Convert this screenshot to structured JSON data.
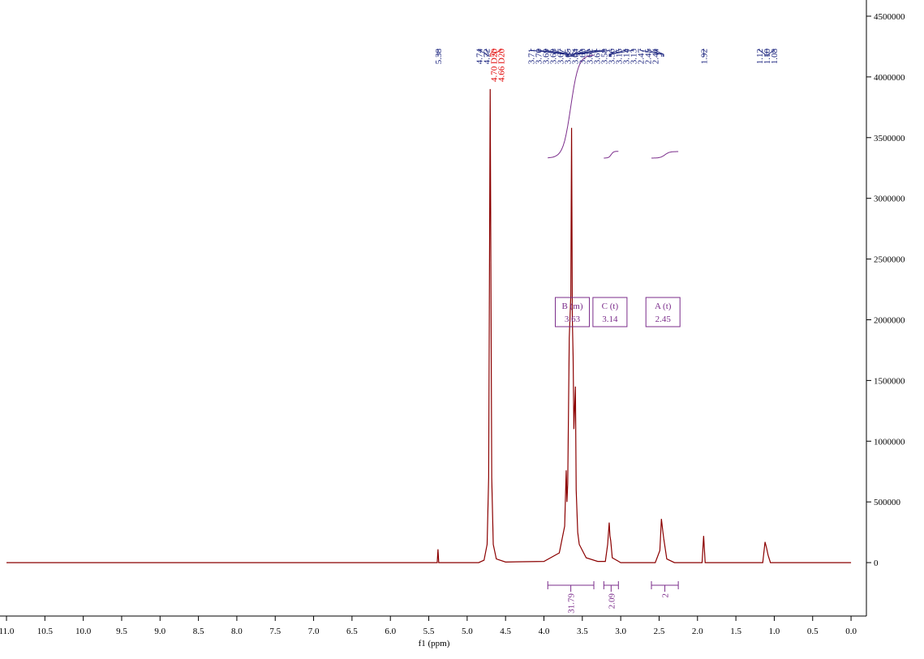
{
  "chart_data": {
    "type": "line",
    "x_label": "f1 (ppm)",
    "color": "#8b0000",
    "x": [
      11.0,
      5.45,
      5.39,
      5.38,
      5.37,
      4.85,
      4.78,
      4.74,
      4.72,
      4.7,
      4.68,
      4.66,
      4.62,
      4.5,
      4.0,
      3.8,
      3.73,
      3.71,
      3.7,
      3.69,
      3.67,
      3.65,
      3.64,
      3.63,
      3.62,
      3.61,
      3.59,
      3.58,
      3.56,
      3.54,
      3.45,
      3.3,
      3.2,
      3.17,
      3.15,
      3.14,
      3.13,
      3.11,
      3.0,
      2.55,
      2.49,
      2.47,
      2.45,
      2.44,
      2.4,
      2.3,
      1.94,
      1.92,
      1.9,
      1.15,
      1.12,
      1.1,
      1.08,
      1.05,
      0
    ],
    "values": [
      0,
      0,
      0,
      110000,
      0,
      0,
      20000,
      150000,
      700000,
      3900000,
      700000,
      150000,
      30000,
      5000,
      10000,
      80000,
      300000,
      760000,
      500000,
      650000,
      1850000,
      2200000,
      3580000,
      2000000,
      1700000,
      1100000,
      1450000,
      600000,
      250000,
      150000,
      40000,
      10000,
      10000,
      150000,
      330000,
      220000,
      180000,
      40000,
      0,
      0,
      100000,
      360000,
      250000,
      200000,
      30000,
      0,
      0,
      220000,
      0,
      0,
      170000,
      120000,
      60000,
      0,
      0
    ],
    "xlim": [
      11.0,
      -0.2
    ],
    "xticks": [
      {
        "value": 11.0,
        "label": "11.0"
      },
      10.5,
      {
        "value": 10.0,
        "label": "10.0"
      },
      9.5,
      {
        "value": 9.0,
        "label": "9.0"
      },
      8.5,
      {
        "value": 8.0,
        "label": "8.0"
      },
      7.5,
      {
        "value": 7.0,
        "label": "7.0"
      },
      6.5,
      {
        "value": 6.0,
        "label": "6.0"
      },
      5.5,
      {
        "value": 5.0,
        "label": "5.0"
      },
      4.5,
      {
        "value": 4.0,
        "label": "4.0"
      },
      3.5,
      {
        "value": 3.0,
        "label": "3.0"
      },
      2.5,
      {
        "value": 2.0,
        "label": "2.0"
      },
      1.5,
      {
        "value": 1.0,
        "label": "1.0"
      },
      0.5,
      {
        "value": 0,
        "label": "0.0"
      }
    ],
    "ylim": [
      -440000,
      4600000
    ],
    "yticks": [
      0,
      500000,
      1000000,
      1500000,
      2000000,
      2500000,
      3000000,
      3500000,
      4000000,
      4500000
    ],
    "peak_labels": [
      {
        "text": "5.38"
      },
      {
        "text": "4.74"
      },
      {
        "text": "4.72"
      },
      {
        "text": "4.70 D20",
        "solvent": true
      },
      {
        "text": "4.66 D20",
        "solvent": true
      },
      {
        "text": "3.71"
      },
      {
        "text": "3.70"
      },
      {
        "text": "3.69"
      },
      {
        "text": "3.68"
      },
      {
        "text": "3.67"
      },
      {
        "text": "3.65"
      },
      {
        "text": "3.64"
      },
      {
        "text": "3.63"
      },
      {
        "text": "3.62"
      },
      {
        "text": "3.61"
      },
      {
        "text": "3.58"
      },
      {
        "text": "3.56"
      },
      {
        "text": "3.15"
      },
      {
        "text": "3.14"
      },
      {
        "text": "3.13"
      },
      {
        "text": "2.47"
      },
      {
        "text": "2.45"
      },
      {
        "text": "2.44"
      },
      {
        "text": "1.92"
      },
      {
        "text": "1.12"
      },
      {
        "text": "1.10"
      },
      {
        "text": "1.08"
      }
    ],
    "multiplets": [
      {
        "label": "B (m)",
        "shift": "3.63"
      },
      {
        "label": "C (t)",
        "shift": "3.14"
      },
      {
        "label": "A (t)",
        "shift": "2.45"
      }
    ],
    "integrals": [
      {
        "value": 31.79,
        "from": 3.95,
        "to": 3.35
      },
      {
        "value": 2.09,
        "from": 3.22,
        "to": 3.03
      },
      {
        "value": 2.0,
        "from": 2.6,
        "to": 2.25
      }
    ]
  }
}
